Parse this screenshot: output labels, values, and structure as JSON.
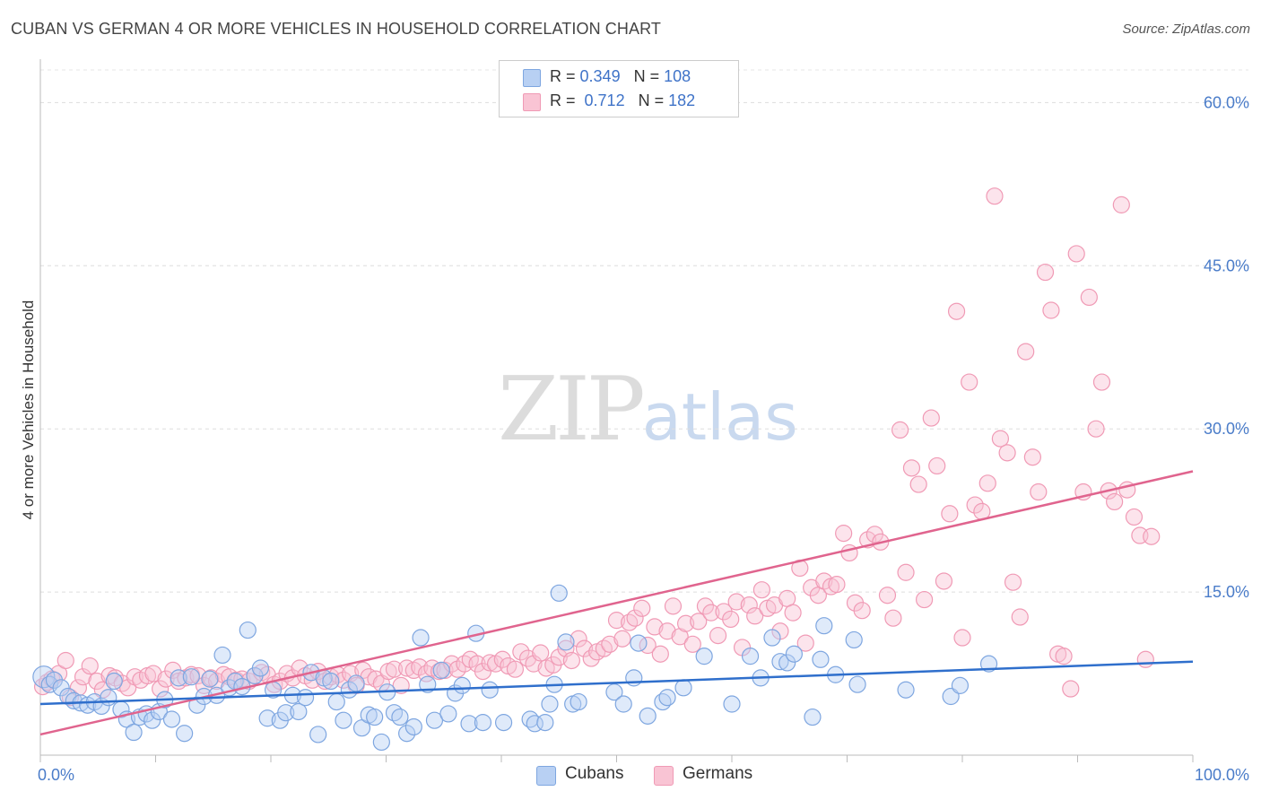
{
  "title": "CUBAN VS GERMAN 4 OR MORE VEHICLES IN HOUSEHOLD CORRELATION CHART",
  "source": "Source: ZipAtlas.com",
  "watermark": {
    "zip": "ZIP",
    "atlas": "atlas"
  },
  "legend": {
    "r_label": "R =",
    "n_label": "N =",
    "rows": [
      {
        "r": "0.349",
        "n": "108"
      },
      {
        "r": "0.712",
        "n": "182"
      }
    ]
  },
  "bottom_legend": [
    "Cubans",
    "Germans"
  ],
  "colors": {
    "cuban_fill": "#b8d0f3",
    "cuban_stroke": "#7ea6e0",
    "cuban_line": "#2f6fcc",
    "german_fill": "#f9c4d4",
    "german_stroke": "#f09ab5",
    "german_line": "#e0648e",
    "tick_text": "#4a7cc9"
  },
  "chart_data": {
    "type": "scatter",
    "title": "CUBAN VS GERMAN 4 OR MORE VEHICLES IN HOUSEHOLD CORRELATION CHART",
    "xlabel": "",
    "ylabel": "4 or more Vehicles in Household",
    "xlim": [
      0,
      100
    ],
    "ylim": [
      0,
      63
    ],
    "x_tick_labels": [
      "0.0%",
      "100.0%"
    ],
    "y_ticks": [
      15,
      30,
      45,
      60
    ],
    "y_tick_labels": [
      "15.0%",
      "30.0%",
      "45.0%",
      "60.0%"
    ],
    "grid": true,
    "legend_position": "top-center",
    "series": [
      {
        "name": "Cubans",
        "trend": {
          "x": [
            0,
            100
          ],
          "y": [
            4.7,
            8.6
          ]
        },
        "points": [
          [
            0.3,
            7.2
          ],
          [
            0.8,
            6.5
          ],
          [
            1.2,
            6.9
          ],
          [
            1.8,
            6.2
          ],
          [
            2.4,
            5.4
          ],
          [
            2.9,
            5.0
          ],
          [
            3.5,
            4.8
          ],
          [
            4.1,
            4.6
          ],
          [
            4.7,
            4.9
          ],
          [
            5.3,
            4.5
          ],
          [
            5.9,
            5.3
          ],
          [
            6.4,
            6.8
          ],
          [
            7.0,
            4.2
          ],
          [
            7.5,
            3.3
          ],
          [
            8.1,
            2.1
          ],
          [
            8.6,
            3.5
          ],
          [
            9.2,
            3.8
          ],
          [
            9.7,
            3.2
          ],
          [
            10.3,
            4.0
          ],
          [
            10.8,
            5.1
          ],
          [
            11.4,
            3.3
          ],
          [
            12.0,
            7.1
          ],
          [
            12.5,
            2.0
          ],
          [
            13.1,
            7.2
          ],
          [
            13.6,
            4.6
          ],
          [
            14.2,
            5.4
          ],
          [
            14.7,
            7.0
          ],
          [
            15.3,
            5.5
          ],
          [
            15.8,
            9.2
          ],
          [
            16.4,
            6.2
          ],
          [
            16.9,
            6.8
          ],
          [
            17.5,
            6.3
          ],
          [
            18.0,
            11.5
          ],
          [
            18.6,
            7.3
          ],
          [
            19.1,
            8.0
          ],
          [
            19.7,
            3.4
          ],
          [
            20.2,
            6.0
          ],
          [
            20.8,
            3.2
          ],
          [
            21.3,
            3.9
          ],
          [
            21.9,
            5.5
          ],
          [
            22.4,
            4.0
          ],
          [
            23.0,
            5.3
          ],
          [
            23.5,
            7.6
          ],
          [
            24.1,
            1.9
          ],
          [
            24.6,
            7.1
          ],
          [
            25.2,
            6.8
          ],
          [
            25.7,
            4.9
          ],
          [
            26.3,
            3.2
          ],
          [
            26.8,
            6.0
          ],
          [
            27.4,
            6.6
          ],
          [
            27.9,
            2.5
          ],
          [
            28.5,
            3.7
          ],
          [
            29.0,
            3.5
          ],
          [
            29.6,
            1.2
          ],
          [
            30.1,
            5.8
          ],
          [
            30.7,
            3.9
          ],
          [
            31.2,
            3.5
          ],
          [
            31.8,
            2.0
          ],
          [
            32.4,
            2.6
          ],
          [
            33.0,
            10.8
          ],
          [
            33.6,
            6.5
          ],
          [
            34.2,
            3.2
          ],
          [
            34.8,
            7.8
          ],
          [
            35.4,
            3.8
          ],
          [
            36.0,
            5.7
          ],
          [
            36.6,
            6.4
          ],
          [
            37.2,
            2.9
          ],
          [
            37.8,
            11.2
          ],
          [
            38.4,
            3.0
          ],
          [
            39.0,
            6.0
          ],
          [
            40.2,
            3.0
          ],
          [
            42.5,
            3.3
          ],
          [
            42.9,
            2.9
          ],
          [
            43.8,
            3.0
          ],
          [
            44.2,
            4.7
          ],
          [
            44.6,
            6.5
          ],
          [
            45.0,
            14.9
          ],
          [
            45.6,
            10.4
          ],
          [
            46.2,
            4.7
          ],
          [
            46.7,
            4.9
          ],
          [
            49.8,
            5.8
          ],
          [
            50.6,
            4.7
          ],
          [
            51.5,
            7.1
          ],
          [
            51.9,
            10.3
          ],
          [
            52.7,
            3.6
          ],
          [
            54.0,
            4.9
          ],
          [
            54.4,
            5.3
          ],
          [
            55.8,
            6.2
          ],
          [
            57.6,
            9.1
          ],
          [
            60.0,
            4.7
          ],
          [
            61.6,
            9.1
          ],
          [
            62.5,
            7.1
          ],
          [
            63.5,
            10.8
          ],
          [
            64.2,
            8.6
          ],
          [
            64.8,
            8.5
          ],
          [
            65.4,
            9.3
          ],
          [
            67.0,
            3.5
          ],
          [
            67.7,
            8.8
          ],
          [
            68.0,
            11.9
          ],
          [
            69.0,
            7.4
          ],
          [
            70.6,
            10.6
          ],
          [
            70.9,
            6.5
          ],
          [
            75.1,
            6.0
          ],
          [
            79.0,
            5.4
          ],
          [
            79.8,
            6.4
          ],
          [
            82.3,
            8.4
          ]
        ]
      },
      {
        "name": "Germans",
        "trend": {
          "x": [
            0,
            100
          ],
          "y": [
            1.9,
            26.1
          ]
        },
        "points": [
          [
            0.2,
            6.3
          ],
          [
            0.6,
            6.7
          ],
          [
            1.0,
            7.0
          ],
          [
            1.6,
            7.5
          ],
          [
            2.2,
            8.7
          ],
          [
            2.6,
            5.3
          ],
          [
            3.3,
            6.2
          ],
          [
            3.7,
            7.2
          ],
          [
            4.3,
            8.2
          ],
          [
            4.9,
            6.8
          ],
          [
            5.4,
            6.0
          ],
          [
            6.0,
            7.3
          ],
          [
            6.5,
            7.1
          ],
          [
            7.1,
            6.6
          ],
          [
            7.6,
            6.2
          ],
          [
            8.2,
            7.2
          ],
          [
            8.7,
            6.9
          ],
          [
            9.3,
            7.3
          ],
          [
            9.8,
            7.5
          ],
          [
            10.4,
            6.1
          ],
          [
            10.9,
            7.0
          ],
          [
            11.5,
            7.8
          ],
          [
            12.0,
            6.8
          ],
          [
            12.6,
            7.1
          ],
          [
            13.1,
            7.4
          ],
          [
            13.7,
            7.3
          ],
          [
            14.2,
            6.4
          ],
          [
            14.8,
            7.1
          ],
          [
            15.3,
            6.8
          ],
          [
            15.9,
            7.4
          ],
          [
            16.4,
            7.2
          ],
          [
            17.0,
            6.9
          ],
          [
            17.5,
            7.0
          ],
          [
            18.1,
            6.8
          ],
          [
            18.6,
            7.3
          ],
          [
            19.2,
            7.6
          ],
          [
            19.7,
            7.4
          ],
          [
            20.3,
            6.5
          ],
          [
            20.8,
            6.8
          ],
          [
            21.4,
            7.5
          ],
          [
            21.9,
            7.1
          ],
          [
            22.5,
            8.0
          ],
          [
            23.0,
            7.3
          ],
          [
            23.6,
            6.9
          ],
          [
            24.1,
            7.7
          ],
          [
            24.7,
            6.8
          ],
          [
            25.2,
            7.2
          ],
          [
            25.8,
            7.4
          ],
          [
            26.3,
            6.9
          ],
          [
            26.9,
            7.5
          ],
          [
            27.4,
            6.4
          ],
          [
            28.0,
            7.8
          ],
          [
            28.5,
            7.2
          ],
          [
            29.1,
            7.0
          ],
          [
            29.6,
            6.6
          ],
          [
            30.2,
            7.7
          ],
          [
            30.7,
            7.9
          ],
          [
            31.3,
            6.4
          ],
          [
            31.8,
            8.0
          ],
          [
            32.4,
            7.8
          ],
          [
            32.9,
            8.1
          ],
          [
            33.5,
            7.5
          ],
          [
            34.0,
            8.0
          ],
          [
            34.6,
            7.7
          ],
          [
            35.1,
            7.8
          ],
          [
            35.7,
            8.4
          ],
          [
            36.2,
            7.9
          ],
          [
            36.8,
            8.4
          ],
          [
            37.3,
            8.8
          ],
          [
            37.9,
            8.4
          ],
          [
            38.4,
            7.7
          ],
          [
            39.0,
            8.5
          ],
          [
            39.5,
            8.4
          ],
          [
            40.1,
            8.8
          ],
          [
            40.6,
            8.2
          ],
          [
            41.2,
            7.9
          ],
          [
            41.7,
            9.5
          ],
          [
            42.3,
            8.9
          ],
          [
            42.8,
            8.4
          ],
          [
            43.4,
            9.4
          ],
          [
            43.9,
            8.0
          ],
          [
            44.5,
            8.3
          ],
          [
            45.0,
            9.0
          ],
          [
            45.6,
            9.8
          ],
          [
            46.1,
            8.7
          ],
          [
            46.7,
            10.7
          ],
          [
            47.2,
            9.8
          ],
          [
            47.8,
            8.9
          ],
          [
            48.3,
            9.5
          ],
          [
            48.9,
            9.8
          ],
          [
            49.4,
            10.2
          ],
          [
            50.0,
            12.4
          ],
          [
            50.5,
            10.7
          ],
          [
            51.1,
            12.2
          ],
          [
            51.6,
            12.6
          ],
          [
            52.2,
            13.5
          ],
          [
            52.7,
            10.1
          ],
          [
            53.3,
            11.8
          ],
          [
            53.8,
            9.3
          ],
          [
            54.4,
            11.4
          ],
          [
            54.9,
            13.7
          ],
          [
            55.5,
            10.9
          ],
          [
            56.0,
            12.1
          ],
          [
            56.6,
            10.2
          ],
          [
            57.1,
            12.3
          ],
          [
            57.7,
            13.7
          ],
          [
            58.2,
            13.1
          ],
          [
            58.8,
            11.0
          ],
          [
            59.3,
            13.2
          ],
          [
            59.9,
            12.5
          ],
          [
            60.4,
            14.1
          ],
          [
            60.9,
            9.9
          ],
          [
            61.5,
            13.8
          ],
          [
            62.0,
            12.8
          ],
          [
            62.6,
            15.2
          ],
          [
            63.1,
            13.5
          ],
          [
            63.7,
            13.8
          ],
          [
            64.2,
            11.4
          ],
          [
            64.8,
            14.4
          ],
          [
            65.3,
            13.1
          ],
          [
            65.9,
            17.2
          ],
          [
            66.4,
            10.3
          ],
          [
            66.9,
            15.4
          ],
          [
            67.5,
            14.7
          ],
          [
            68.0,
            16.0
          ],
          [
            68.6,
            15.5
          ],
          [
            69.1,
            15.7
          ],
          [
            69.7,
            20.4
          ],
          [
            70.2,
            18.6
          ],
          [
            70.7,
            14.0
          ],
          [
            71.3,
            13.3
          ],
          [
            71.8,
            19.8
          ],
          [
            72.4,
            20.3
          ],
          [
            72.9,
            19.6
          ],
          [
            73.5,
            14.7
          ],
          [
            74.0,
            12.6
          ],
          [
            74.6,
            29.9
          ],
          [
            75.1,
            16.8
          ],
          [
            75.6,
            26.4
          ],
          [
            76.2,
            24.9
          ],
          [
            76.7,
            14.3
          ],
          [
            77.3,
            31.0
          ],
          [
            77.8,
            26.6
          ],
          [
            78.4,
            16.0
          ],
          [
            78.9,
            22.2
          ],
          [
            79.5,
            40.8
          ],
          [
            80.0,
            10.8
          ],
          [
            80.6,
            34.3
          ],
          [
            81.1,
            23.0
          ],
          [
            81.7,
            22.4
          ],
          [
            82.2,
            25.0
          ],
          [
            82.8,
            51.4
          ],
          [
            83.3,
            29.1
          ],
          [
            83.9,
            27.8
          ],
          [
            84.4,
            15.9
          ],
          [
            85.0,
            12.7
          ],
          [
            85.5,
            37.1
          ],
          [
            86.1,
            27.4
          ],
          [
            86.6,
            24.2
          ],
          [
            87.2,
            44.4
          ],
          [
            87.7,
            40.9
          ],
          [
            88.3,
            9.3
          ],
          [
            88.8,
            9.1
          ],
          [
            89.4,
            6.1
          ],
          [
            89.9,
            46.1
          ],
          [
            90.5,
            24.2
          ],
          [
            91.0,
            42.1
          ],
          [
            91.6,
            30.0
          ],
          [
            92.1,
            34.3
          ],
          [
            92.7,
            24.3
          ],
          [
            93.2,
            23.3
          ],
          [
            93.8,
            50.6
          ],
          [
            94.3,
            24.4
          ],
          [
            94.9,
            21.9
          ],
          [
            95.4,
            20.2
          ],
          [
            95.9,
            8.8
          ],
          [
            96.4,
            20.1
          ]
        ]
      }
    ]
  }
}
